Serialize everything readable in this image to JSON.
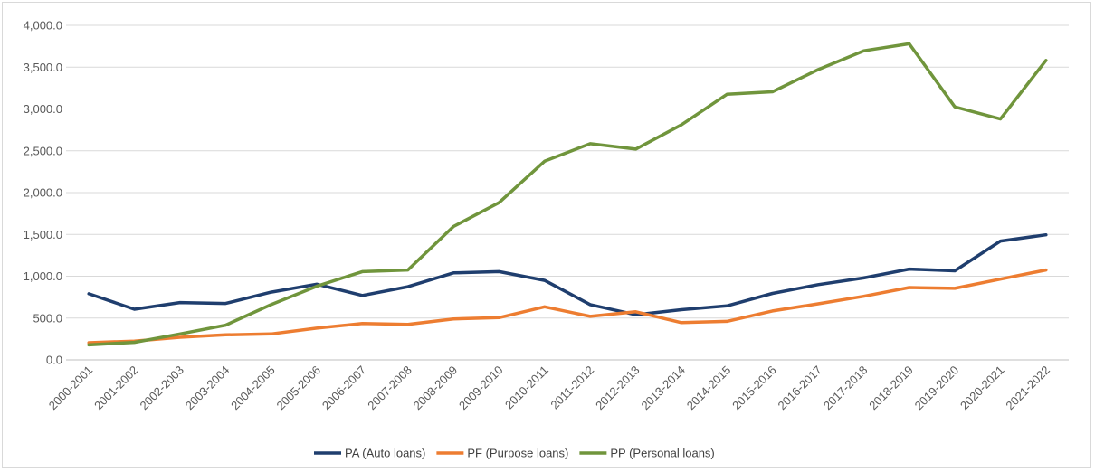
{
  "chart_data": {
    "type": "line",
    "title": "",
    "xlabel": "",
    "ylabel": "",
    "ylim": [
      0,
      4000
    ],
    "y_ticks": [
      "0.0",
      "500.0",
      "1,000.0",
      "1,500.0",
      "2,000.0",
      "2,500.0",
      "3,000.0",
      "3,500.0",
      "4,000.0"
    ],
    "grid": "horizontal",
    "legend_position": "bottom",
    "categories": [
      "2000-2001",
      "2001-2002",
      "2002-2003",
      "2003-2004",
      "2004-2005",
      "2005-2006",
      "2006-2007",
      "2007-2008",
      "2008-2009",
      "2009-2010",
      "2010-2011",
      "2011-2012",
      "2012-2013",
      "2013-2014",
      "2014-2015",
      "2015-2016",
      "2016-2017",
      "2017-2018",
      "2018-2019",
      "2019-2020",
      "2020-2021",
      "2021-2022"
    ],
    "series": [
      {
        "name": "PA (Auto loans)",
        "color": "#1f3e6e",
        "values": [
          790,
          605,
          685,
          675,
          810,
          905,
          770,
          875,
          1040,
          1055,
          950,
          660,
          540,
          600,
          645,
          795,
          900,
          980,
          1085,
          1065,
          1420,
          1495
        ]
      },
      {
        "name": "PF (Purpose loans)",
        "color": "#ed7d31",
        "values": [
          205,
          225,
          270,
          300,
          310,
          380,
          435,
          425,
          490,
          505,
          635,
          520,
          575,
          445,
          460,
          585,
          670,
          760,
          865,
          855,
          965,
          1075
        ]
      },
      {
        "name": "PP (Personal loans)",
        "color": "#70953c",
        "values": [
          180,
          210,
          310,
          415,
          660,
          880,
          1055,
          1075,
          1595,
          1880,
          2375,
          2585,
          2520,
          2810,
          3175,
          3205,
          3470,
          3695,
          3780,
          3025,
          2880,
          3580
        ]
      }
    ]
  }
}
